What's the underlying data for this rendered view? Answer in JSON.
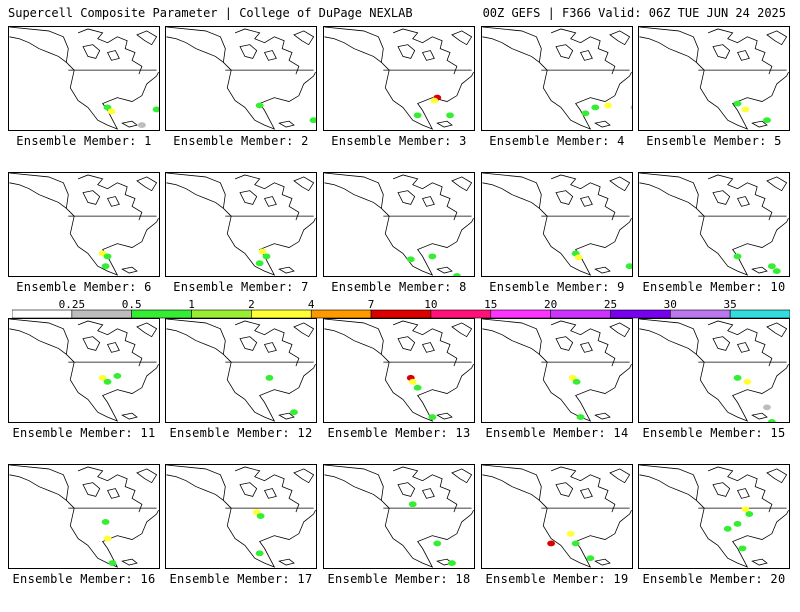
{
  "header": {
    "title_left": "Supercell Composite Parameter | College of DuPage NEXLAB",
    "title_right": "00Z GEFS | F366 Valid: 06Z TUE JUN 24 2025"
  },
  "panels": [
    {
      "label": "Ensemble Member: 1",
      "blobs": [
        [
          100,
          82,
          "g"
        ],
        [
          104,
          86,
          "y"
        ],
        [
          150,
          84,
          "g"
        ],
        [
          135,
          100,
          "k"
        ],
        [
          118,
          110,
          "g"
        ]
      ]
    },
    {
      "label": "Ensemble Member: 2",
      "blobs": [
        [
          95,
          80,
          "g"
        ],
        [
          150,
          95,
          "g"
        ],
        [
          130,
          110,
          "g"
        ],
        [
          140,
          115,
          "g"
        ]
      ]
    },
    {
      "label": "Ensemble Member: 3",
      "blobs": [
        [
          115,
          72,
          "r"
        ],
        [
          112,
          75,
          "y"
        ],
        [
          95,
          90,
          "g"
        ],
        [
          128,
          90,
          "g"
        ],
        [
          135,
          110,
          "g"
        ]
      ]
    },
    {
      "label": "Ensemble Member: 4",
      "blobs": [
        [
          115,
          82,
          "g"
        ],
        [
          128,
          80,
          "y"
        ],
        [
          105,
          88,
          "g"
        ],
        [
          155,
          82,
          "k"
        ],
        [
          150,
          115,
          "g"
        ]
      ]
    },
    {
      "label": "Ensemble Member: 5",
      "blobs": [
        [
          100,
          78,
          "g"
        ],
        [
          108,
          84,
          "y"
        ],
        [
          130,
          95,
          "g"
        ],
        [
          140,
          110,
          "g"
        ],
        [
          120,
          112,
          "g"
        ]
      ]
    },
    {
      "label": "Ensemble Member: 6",
      "blobs": [
        [
          95,
          82,
          "y"
        ],
        [
          100,
          85,
          "g"
        ],
        [
          98,
          95,
          "g"
        ],
        [
          140,
          108,
          "g"
        ]
      ]
    },
    {
      "label": "Ensemble Member: 7",
      "blobs": [
        [
          98,
          80,
          "y"
        ],
        [
          102,
          85,
          "g"
        ],
        [
          95,
          92,
          "g"
        ],
        [
          120,
          118,
          "g"
        ]
      ]
    },
    {
      "label": "Ensemble Member: 8",
      "blobs": [
        [
          88,
          88,
          "g"
        ],
        [
          110,
          85,
          "g"
        ],
        [
          135,
          105,
          "g"
        ],
        [
          145,
          112,
          "g"
        ]
      ]
    },
    {
      "label": "Ensemble Member: 9",
      "blobs": [
        [
          95,
          82,
          "g"
        ],
        [
          98,
          86,
          "y"
        ],
        [
          150,
          95,
          "g"
        ],
        [
          120,
          110,
          "g"
        ]
      ]
    },
    {
      "label": "Ensemble Member: 10",
      "blobs": [
        [
          100,
          85,
          "g"
        ],
        [
          135,
          95,
          "g"
        ],
        [
          140,
          100,
          "g"
        ],
        [
          120,
          112,
          "g"
        ]
      ]
    },
    {
      "label": "Ensemble Member: 11",
      "blobs": [
        [
          95,
          60,
          "y"
        ],
        [
          100,
          64,
          "g"
        ],
        [
          110,
          58,
          "g"
        ],
        [
          120,
          110,
          "g"
        ]
      ]
    },
    {
      "label": "Ensemble Member: 12",
      "blobs": [
        [
          105,
          60,
          "g"
        ],
        [
          130,
          95,
          "g"
        ],
        [
          150,
          110,
          "g"
        ]
      ]
    },
    {
      "label": "Ensemble Member: 13",
      "blobs": [
        [
          88,
          60,
          "r"
        ],
        [
          90,
          64,
          "y"
        ],
        [
          95,
          70,
          "g"
        ],
        [
          110,
          100,
          "g"
        ]
      ]
    },
    {
      "label": "Ensemble Member: 14",
      "blobs": [
        [
          92,
          60,
          "y"
        ],
        [
          96,
          64,
          "g"
        ],
        [
          100,
          100,
          "g"
        ],
        [
          130,
          110,
          "g"
        ]
      ]
    },
    {
      "label": "Ensemble Member: 15",
      "blobs": [
        [
          100,
          60,
          "g"
        ],
        [
          110,
          64,
          "y"
        ],
        [
          130,
          90,
          "k"
        ],
        [
          135,
          105,
          "g"
        ]
      ]
    },
    {
      "label": "Ensemble Member: 16",
      "blobs": [
        [
          98,
          58,
          "g"
        ],
        [
          100,
          75,
          "y"
        ],
        [
          105,
          100,
          "g"
        ],
        [
          130,
          110,
          "g"
        ]
      ]
    },
    {
      "label": "Ensemble Member: 17",
      "blobs": [
        [
          92,
          48,
          "y"
        ],
        [
          96,
          52,
          "g"
        ],
        [
          95,
          90,
          "g"
        ],
        [
          125,
          110,
          "g"
        ]
      ]
    },
    {
      "label": "Ensemble Member: 18",
      "blobs": [
        [
          90,
          40,
          "g"
        ],
        [
          115,
          80,
          "g"
        ],
        [
          130,
          100,
          "g"
        ],
        [
          145,
          108,
          "g"
        ]
      ]
    },
    {
      "label": "Ensemble Member: 19",
      "blobs": [
        [
          90,
          70,
          "y"
        ],
        [
          95,
          80,
          "g"
        ],
        [
          70,
          80,
          "r"
        ],
        [
          110,
          95,
          "g"
        ]
      ]
    },
    {
      "label": "Ensemble Member: 20",
      "blobs": [
        [
          108,
          45,
          "y"
        ],
        [
          112,
          50,
          "g"
        ],
        [
          100,
          60,
          "g"
        ],
        [
          90,
          65,
          "g"
        ],
        [
          105,
          85,
          "g"
        ]
      ]
    }
  ],
  "colorbar": {
    "ticks": [
      "0.25",
      "0.5",
      "1",
      "2",
      "4",
      "7",
      "10",
      "15",
      "20",
      "25",
      "30",
      "35"
    ],
    "colors": [
      "#ffffff",
      "#bdbdbd",
      "#33ee33",
      "#99ee33",
      "#ffff33",
      "#ff9900",
      "#dd0000",
      "#ff1177",
      "#ff33ff",
      "#cc33ff",
      "#7700ee",
      "#bb77ee",
      "#33dddd"
    ]
  },
  "palette": {
    "k": "#bdbdbd",
    "g": "#33ee33",
    "l": "#99ee33",
    "y": "#ffff33",
    "o": "#ff9900",
    "r": "#dd0000"
  }
}
